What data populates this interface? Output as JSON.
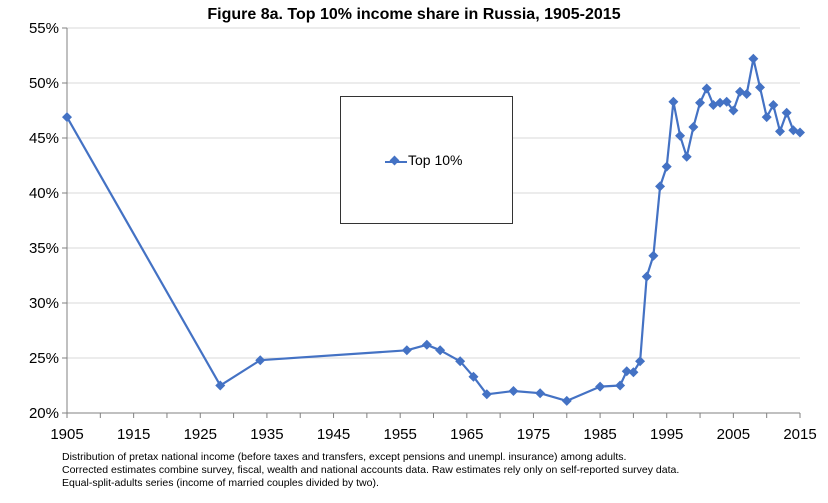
{
  "chart_data": {
    "type": "line",
    "title": "Figure 8a. Top 10% income share in Russia, 1905-2015",
    "xlabel": "",
    "ylabel": "",
    "xlim": [
      1905,
      2015
    ],
    "ylim": [
      20,
      55
    ],
    "x_ticks": [
      "1905",
      "1915",
      "1925",
      "1935",
      "1945",
      "1955",
      "1965",
      "1975",
      "1985",
      "1995",
      "2005",
      "2015"
    ],
    "y_ticks": [
      "20%",
      "25%",
      "30%",
      "35%",
      "40%",
      "45%",
      "50%",
      "55%"
    ],
    "grid": "horizontal",
    "legend_position": "center",
    "series": [
      {
        "name": "Top 10%",
        "color": "#4472C4",
        "marker": "diamond",
        "points": [
          [
            1905,
            46.9
          ],
          [
            1928,
            22.5
          ],
          [
            1934,
            24.8
          ],
          [
            1956,
            25.7
          ],
          [
            1959,
            26.2
          ],
          [
            1961,
            25.7
          ],
          [
            1964,
            24.7
          ],
          [
            1966,
            23.3
          ],
          [
            1968,
            21.7
          ],
          [
            1972,
            22.0
          ],
          [
            1976,
            21.8
          ],
          [
            1980,
            21.1
          ],
          [
            1985,
            22.4
          ],
          [
            1988,
            22.5
          ],
          [
            1989,
            23.8
          ],
          [
            1990,
            23.7
          ],
          [
            1991,
            24.7
          ],
          [
            1992,
            32.4
          ],
          [
            1993,
            34.3
          ],
          [
            1994,
            40.6
          ],
          [
            1995,
            42.4
          ],
          [
            1996,
            48.3
          ],
          [
            1997,
            45.2
          ],
          [
            1998,
            43.3
          ],
          [
            1999,
            46.0
          ],
          [
            2000,
            48.2
          ],
          [
            2001,
            49.5
          ],
          [
            2002,
            48.0
          ],
          [
            2003,
            48.2
          ],
          [
            2004,
            48.3
          ],
          [
            2005,
            47.5
          ],
          [
            2006,
            49.2
          ],
          [
            2007,
            49.0
          ],
          [
            2008,
            52.2
          ],
          [
            2009,
            49.6
          ],
          [
            2010,
            46.9
          ],
          [
            2011,
            48.0
          ],
          [
            2012,
            45.6
          ],
          [
            2013,
            47.3
          ],
          [
            2014,
            45.7
          ],
          [
            2015,
            45.5
          ]
        ]
      }
    ]
  },
  "footnotes": [
    "Distribution of pretax national income (before taxes and transfers, except pensions and unempl. insurance) among adults.",
    "Corrected estimates combine survey, fiscal, wealth and national accounts data. Raw estimates rely only on self-reported survey data.",
    "Equal-split-adults series (income of married couples divided by two)."
  ]
}
